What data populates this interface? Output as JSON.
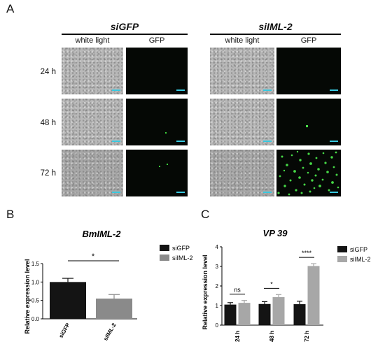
{
  "panelA": {
    "letter": "A",
    "groups": [
      {
        "title": "siGFP"
      },
      {
        "title": "siIML-2"
      }
    ],
    "columns": [
      "white light",
      "GFP",
      "white light",
      "GFP"
    ],
    "rows": [
      "24 h",
      "48 h",
      "72 h"
    ]
  },
  "panelB": {
    "letter": "B",
    "significance": "*"
  },
  "panelC": {
    "letter": "C",
    "significance": [
      "ns",
      "*",
      "****"
    ]
  },
  "chart_data": [
    {
      "type": "bar",
      "title": "BmIML-2",
      "ylabel": "Relative expression level",
      "xlabel": "",
      "categories": [
        "siGFP",
        "siIML-2"
      ],
      "values": [
        1.0,
        0.55
      ],
      "errors": [
        0.1,
        0.11
      ],
      "colors": [
        "#141414",
        "#8a8a8a"
      ],
      "ylim": [
        0,
        1.5
      ],
      "yticks": [
        "0.0",
        "0.5",
        "1.0",
        "1.5"
      ],
      "legend": {
        "placement": "top-right",
        "entries": [
          "siGFP",
          "siIML-2"
        ]
      }
    },
    {
      "type": "bar",
      "title": "VP 39",
      "ylabel": "Relative expression level",
      "xlabel": "",
      "categories": [
        "24 h",
        "48 h",
        "72 h"
      ],
      "series": [
        {
          "name": "siGFP",
          "values": [
            1.05,
            1.08,
            1.07
          ],
          "errors": [
            0.1,
            0.12,
            0.15
          ],
          "color": "#141414"
        },
        {
          "name": "siIML-2",
          "values": [
            1.14,
            1.43,
            3.02
          ],
          "errors": [
            0.12,
            0.13,
            0.12
          ],
          "color": "#a7a7a7"
        }
      ],
      "ylim": [
        0,
        4
      ],
      "yticks": [
        "0",
        "1",
        "2",
        "3",
        "4"
      ],
      "legend": {
        "placement": "top-right",
        "entries": [
          "siGFP",
          "siIML-2"
        ]
      }
    }
  ]
}
